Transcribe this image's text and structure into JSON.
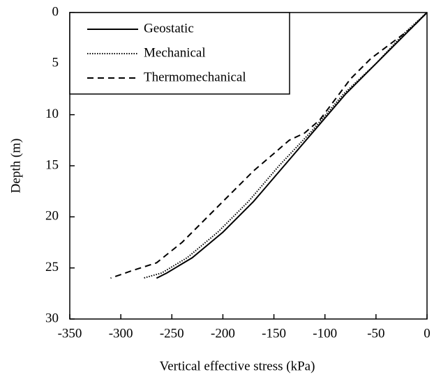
{
  "chart_data": {
    "type": "line",
    "xlabel": "Vertical effective stress (kPa)",
    "ylabel": "Depth (m)",
    "xlim": [
      -350,
      0
    ],
    "xticks": [
      -350,
      -300,
      -250,
      -200,
      -150,
      -100,
      -50,
      0
    ],
    "ylim": [
      30,
      0
    ],
    "yticks": [
      0,
      5,
      10,
      15,
      20,
      25,
      30
    ],
    "legend": "upper-left",
    "series": [
      {
        "name": "Geostatic",
        "color": "#000000",
        "dash": "solid",
        "x": [
          0,
          -20,
          -50,
          -80,
          -110,
          -140,
          -170,
          -200,
          -230,
          -255,
          -265
        ],
        "values": [
          0,
          2,
          5,
          8,
          11.5,
          15,
          18.5,
          21.5,
          24,
          25.5,
          26
        ]
      },
      {
        "name": "Mechanical",
        "color": "#000000",
        "dash": "dotted",
        "x": [
          0,
          -22,
          -50,
          -82,
          -112,
          -145,
          -175,
          -205,
          -235,
          -260,
          -278
        ],
        "values": [
          0,
          2,
          5,
          8,
          11.5,
          15,
          18.5,
          21.5,
          24,
          25.5,
          26
        ]
      },
      {
        "name": "Thermomechanical",
        "color": "#000000",
        "dash": "dashed",
        "x": [
          0,
          -15,
          -35,
          -55,
          -75,
          -90,
          -105,
          -120,
          -135,
          -150,
          -170,
          -190,
          -215,
          -240,
          -265,
          -290,
          -310
        ],
        "values": [
          0,
          1.5,
          3,
          4.5,
          6.5,
          8.5,
          10.5,
          11.8,
          12.5,
          13.8,
          15.5,
          17.5,
          20,
          22.5,
          24.5,
          25.3,
          26
        ]
      }
    ]
  }
}
